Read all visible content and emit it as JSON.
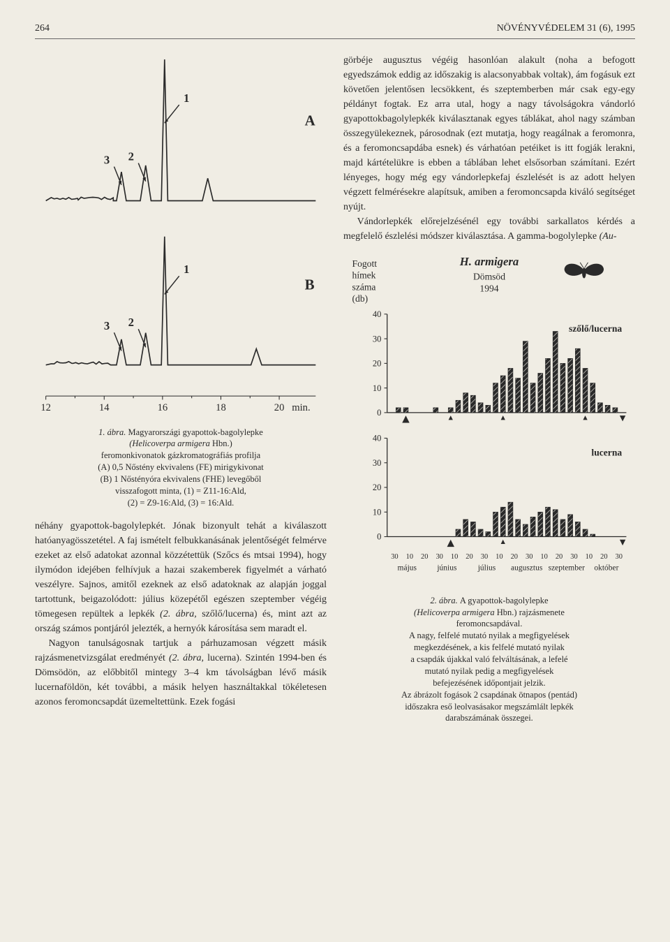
{
  "header": {
    "page_number": "264",
    "journal": "NÖVÉNYVÉDELEM 31 (6), 1995"
  },
  "colors": {
    "bg": "#f0ede4",
    "ink": "#2a2a2a",
    "accent_border": "#666666",
    "bar_fill": "#2a2a2a",
    "bar_hatch": "#ffffff"
  },
  "fonts": {
    "body_pt": 14,
    "caption_pt": 12.5,
    "line_height": 1.5
  },
  "fig1": {
    "type": "chromatogram",
    "panel_labels": [
      "A",
      "B"
    ],
    "peak_labels": [
      "1",
      "2",
      "3"
    ],
    "x_ticks": [
      12,
      14,
      16,
      18,
      20
    ],
    "x_unit": "min.",
    "panel_A": {
      "baseline_y": 0.92,
      "trace_style": {
        "stroke": "#2a2a2a",
        "stroke_width": 1.6
      },
      "peaks": [
        {
          "label": "3",
          "x": 0.28,
          "height": 0.18,
          "width": 0.018,
          "arrow": true
        },
        {
          "label": "2",
          "x": 0.37,
          "height": 0.22,
          "width": 0.02,
          "arrow": true
        },
        {
          "label": "1",
          "x": 0.44,
          "height": 0.88,
          "width": 0.012,
          "arrow": true
        },
        {
          "label": "",
          "x": 0.6,
          "height": 0.14,
          "width": 0.02,
          "arrow": false
        }
      ],
      "noise_segments": [
        [
          0.02,
          0.12
        ],
        [
          0.12,
          0.25
        ]
      ]
    },
    "panel_B": {
      "baseline_y": 0.92,
      "trace_style": {
        "stroke": "#2a2a2a",
        "stroke_width": 1.6
      },
      "peaks": [
        {
          "label": "3",
          "x": 0.28,
          "height": 0.16,
          "width": 0.018,
          "arrow": true
        },
        {
          "label": "2",
          "x": 0.37,
          "height": 0.2,
          "width": 0.02,
          "arrow": true
        },
        {
          "label": "1",
          "x": 0.44,
          "height": 0.8,
          "width": 0.012,
          "arrow": true
        },
        {
          "label": "",
          "x": 0.78,
          "height": 0.1,
          "width": 0.02,
          "arrow": false
        }
      ],
      "noise_segments": [
        [
          0.02,
          0.1
        ],
        [
          0.1,
          0.24
        ]
      ]
    },
    "caption": {
      "line1_prefix": "1. ábra. ",
      "line1_rest": "Magyarországi gyapottok-bagolylepke",
      "line2_italic": "(Helicoverpa armigera ",
      "line2_rest": "Hbn.)",
      "line3": "feromonkivonatok gázkromatográfiás profilja",
      "line4": "(A) 0,5 Nőstény ekvivalens (FE) mirigykivonat",
      "line5": "(B) 1 Nőstényóra ekvivalens (FHE) levegőből",
      "line6": "visszafogott minta, (1) = Z11-16:Ald,",
      "line7": "(2) = Z9-16:Ald, (3) = 16:Ald."
    }
  },
  "left_body": {
    "p1": "néhány gyapottok-bagolylepkét. Jónak bizonyult tehát a kiválaszott hatóanyagösszetétel. A faj ismételt felbukkanásának jelentőségét felmérve ezeket az első adatokat azonnal közzétettük (Szőcs és mtsai 1994), hogy ilymódon idejében felhívjuk a hazai szakemberek figyelmét a várható veszélyre. Sajnos, amitől ezeknek az első adatoknak az alapján joggal tartottunk, beigazolódott: július közepétől egészen szeptember végéig tömegesen repültek a lepkék ",
    "p1_italic": "(2. ábra,",
    "p1_after": " szőlő/lucerna) és, mint azt az ország számos pontjáról jelezték, a hernyók károsítása sem maradt el.",
    "p2_prefix": "Nagyon tanulságosnak tartjuk a párhuzamosan végzett másik rajzásmenetvizsgálat eredményét ",
    "p2_italic": "(2. ábra,",
    "p2_after": " lucerna). Szintén 1994-ben és Dömsödön, az előbbitől mintegy 3–4 km távolságban lévő másik lucernaföldön, két további, a másik helyen használtakkal tökéletesen azonos feromoncsapdát üzemeltettünk. Ezek fogási"
  },
  "right_body": {
    "p1": "görbéje augusztus végéig hasonlóan alakult (noha a befogott egyedszámok eddig az időszakig is alacsonyabbak voltak), ám fogásuk ezt követően jelentősen lecsökkent, és szeptemberben már csak egy-egy példányt fogtak. Ez arra utal, hogy a nagy távolságokra vándorló gyapottokbagolylepkék kiválasztanak egyes táblákat, ahol nagy számban összegyülekeznek, párosodnak (ezt mutatja, hogy reagálnak a feromonra, és a feromoncsapdába esnek) és várhatóan petéiket is itt fogják lerakni, majd kártételükre is ebben a táblában lehet elsősorban számítani. Ezért lényeges, hogy még egy vándorlepkefaj észlelését is az adott helyen végzett felmérésekre alapítsuk, amiben a feromoncsapda kiváló segítséget nyújt.",
    "p2_prefix": "Vándorlepkék előrejelzésénél egy további sarkallatos kérdés a megfelelő észlelési módszer kiválasztása. A gamma-bogolylepke ",
    "p2_italic": "(Au-"
  },
  "fig2": {
    "type": "bar",
    "title_italic": "H. armigera",
    "y_label_lines": [
      "Fogott",
      "hímek",
      "száma",
      "(db)"
    ],
    "subtitle_lines": [
      "Dömsöd",
      "1994"
    ],
    "moth_icon": true,
    "y_lim": [
      0,
      40
    ],
    "y_ticks": [
      0,
      10,
      20,
      30,
      40
    ],
    "x_tick_labels": [
      "30",
      "10",
      "20",
      "30",
      "10",
      "20",
      "30",
      "10",
      "20",
      "30",
      "10",
      "20",
      "30",
      "10",
      "20",
      "30"
    ],
    "month_labels": [
      "május",
      "június",
      "július",
      "augusztus",
      "szeptember",
      "október"
    ],
    "legend_top": "szőlő/lucerna",
    "legend_bottom": "lucerna",
    "axis_color": "#2a2a2a",
    "bar_style": {
      "fill": "#2a2a2a",
      "hatch": "diagonal",
      "hatch_color": "#f0ede4",
      "stroke": "#2a2a2a",
      "stroke_width": 0.6,
      "bar_width": 0.65
    },
    "panel_top": {
      "values": [
        0,
        2,
        2,
        0,
        0,
        0,
        2,
        0,
        2,
        5,
        8,
        7,
        4,
        3,
        12,
        15,
        18,
        14,
        29,
        12,
        16,
        22,
        33,
        20,
        22,
        26,
        18,
        12,
        4,
        3,
        2,
        0
      ],
      "arrows_up_idx": [
        2,
        8,
        15,
        26
      ],
      "arrows_down_idx": [
        31
      ]
    },
    "panel_bottom": {
      "values": [
        0,
        0,
        0,
        0,
        0,
        0,
        0,
        0,
        0,
        3,
        7,
        6,
        3,
        2,
        10,
        12,
        14,
        7,
        5,
        8,
        10,
        12,
        11,
        7,
        9,
        6,
        3,
        1,
        0,
        0,
        0,
        0
      ],
      "arrows_up_idx": [
        8,
        15
      ],
      "arrows_down_idx": [
        31
      ]
    },
    "caption": {
      "l1_prefix": "2. ábra. ",
      "l1_rest": "A gyapottok-bagolylepke",
      "l2_italic": "(Helicoverpa armigera ",
      "l2_rest": "Hbn.) rajzásmenete",
      "l3": "feromoncsapdával.",
      "l4": "A nagy, felfelé mutató nyilak a megfigyelések",
      "l5": "megkezdésének, a kis felfelé mutató nyilak",
      "l6": "a csapdák újakkal való felváltásának, a lefelé",
      "l7": "mutató nyilak pedig a megfigyelések",
      "l8": "befejezésének időpontjait jelzik.",
      "l9": "Az ábrázolt fogások 2 csapdának ötnapos (pentád)",
      "l10": "időszakra eső leolvasásakor megszámlált lepkék",
      "l11": "darabszámának összegei."
    }
  }
}
